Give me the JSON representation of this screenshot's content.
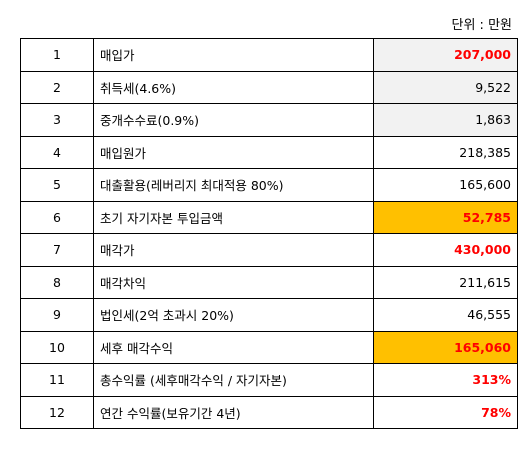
{
  "unit_label": "단위 : 만원",
  "rows": [
    {
      "no": "1",
      "label": "매입가",
      "value": "207,000",
      "red": true,
      "bg": "gray"
    },
    {
      "no": "2",
      "label": "취득세(4.6%)",
      "value": "9,522",
      "red": false,
      "bg": "gray"
    },
    {
      "no": "3",
      "label": "중개수수료(0.9%)",
      "value": "1,863",
      "red": false,
      "bg": "gray"
    },
    {
      "no": "4",
      "label": "매입원가",
      "value": "218,385",
      "red": false,
      "bg": "none"
    },
    {
      "no": "5",
      "label": "대출활용(레버리지 최대적용 80%)",
      "value": "165,600",
      "red": false,
      "bg": "none"
    },
    {
      "no": "6",
      "label": "초기 자기자본 투입금액",
      "value": "52,785",
      "red": true,
      "bg": "gold"
    },
    {
      "no": "7",
      "label": "매각가",
      "value": "430,000",
      "red": true,
      "bg": "none"
    },
    {
      "no": "8",
      "label": "매각차익",
      "value": "211,615",
      "red": false,
      "bg": "none"
    },
    {
      "no": "9",
      "label": "법인세(2억 초과시 20%)",
      "value": "46,555",
      "red": false,
      "bg": "none"
    },
    {
      "no": "10",
      "label": "세후 매각수익",
      "value": "165,060",
      "red": true,
      "bg": "gold"
    },
    {
      "no": "11",
      "label": "총수익률 (세후매각수익 / 자기자본)",
      "value": "313%",
      "red": true,
      "bg": "none"
    },
    {
      "no": "12",
      "label": "연간 수익률(보유기간 4년)",
      "value": "78%",
      "red": true,
      "bg": "none"
    }
  ],
  "colors": {
    "highlight": "#ffc000",
    "shaded": "#f2f2f2",
    "emphasis": "#ff0000"
  }
}
